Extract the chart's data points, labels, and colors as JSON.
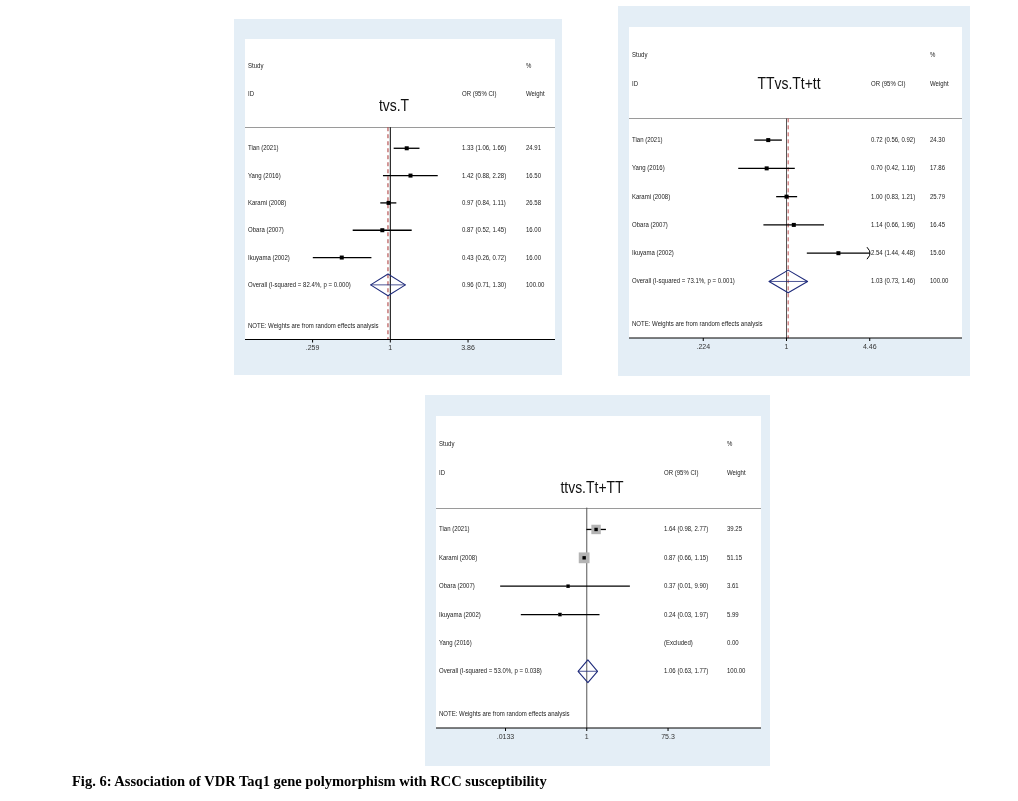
{
  "chart_data": [
    {
      "type": "scatter",
      "title": "tvs.T",
      "orientation": "horizontal",
      "log": "x",
      "categories": [
        "Tian (2021)",
        "Yang (2016)",
        "Karami (2008)",
        "Obara (2007)",
        "Ikuyama (2002)",
        "Overall (I-squared = 82.4%, p = 0.000)"
      ],
      "series": [
        {
          "color": "#000000",
          "marker": "square",
          "values": [
            1.33,
            1.42,
            0.97,
            0.87,
            0.43,
            null
          ],
          "errors": [
            [
              1.06,
              1.66
            ],
            [
              0.88,
              2.28
            ],
            [
              0.84,
              1.11
            ],
            [
              0.52,
              1.45
            ],
            [
              0.26,
              0.72
            ],
            null
          ]
        },
        {
          "color": "#1f2b7b",
          "marker": "diamond",
          "values": [
            null,
            null,
            null,
            null,
            null,
            0.96
          ],
          "errors": [
            null,
            null,
            null,
            null,
            null,
            [
              0.71,
              1.3
            ]
          ]
        }
      ],
      "xlim": [
        0.08,
        17.5
      ],
      "xticks": [
        {
          "value": 0.259,
          "label": ".259"
        },
        1,
        3.86
      ],
      "ref_lines": [
        {
          "axis": "x",
          "value": 1,
          "color": "#000000"
        },
        {
          "axis": "x",
          "value": 0.96,
          "color": "#a83232",
          "line_style": "dashed"
        }
      ],
      "annotations": [
        "Study",
        "ID",
        "OR (95% CI)",
        "%",
        "Weight",
        "1.33 (1.06, 1.66)",
        "24.91",
        "1.42 (0.88, 2.28)",
        "16.50",
        "0.97 (0.84, 1.11)",
        "26.58",
        "0.87 (0.52, 1.45)",
        "16.00",
        "0.43 (0.26, 0.72)",
        "16.00",
        "0.96 (0.71, 1.30)",
        "100.00",
        "NOTE: Weights are from random effects analysis"
      ]
    },
    {
      "type": "scatter",
      "title": "TTvs.Tt+tt",
      "orientation": "horizontal",
      "log": "x",
      "categories": [
        "Tian (2021)",
        "Yang (2016)",
        "Karami (2008)",
        "Obara (2007)",
        "Ikuyama (2002)",
        "Overall (I-squared = 73.1%, p = 0.001)"
      ],
      "series": [
        {
          "color": "#000000",
          "marker": "square",
          "values": [
            0.72,
            0.7,
            1.0,
            1.14,
            2.54,
            null
          ],
          "errors": [
            [
              0.56,
              0.92
            ],
            [
              0.42,
              1.16
            ],
            [
              0.83,
              1.21
            ],
            [
              0.66,
              1.96
            ],
            [
              1.44,
              4.48
            ],
            null
          ]
        },
        {
          "color": "#1f2b7b",
          "marker": "diamond",
          "values": [
            null,
            null,
            null,
            null,
            null,
            1.03
          ],
          "errors": [
            null,
            null,
            null,
            null,
            null,
            [
              0.73,
              1.46
            ]
          ]
        }
      ],
      "xlim": [
        0.059,
        23.4
      ],
      "xticks": [
        {
          "value": 0.224,
          "label": ".224"
        },
        1,
        4.46
      ],
      "ref_lines": [
        {
          "axis": "x",
          "value": 1,
          "color": "#555555"
        },
        {
          "axis": "x",
          "value": 1.03,
          "color": "#c05050",
          "line_style": "dashed"
        }
      ],
      "annotations": [
        "Study",
        "ID",
        "OR (95% CI)",
        "%",
        "Weight",
        "0.72 (0.56, 0.92)",
        "24.30",
        "0.70 (0.42, 1.16)",
        "17.86",
        "1.00 (0.83, 1.21)",
        "25.79",
        "1.14 (0.66, 1.96)",
        "16.45",
        "2.54 (1.44, 4.48)",
        "15.60",
        "1.03 (0.73, 1.46)",
        "100.00",
        "NOTE: Weights are from random effects analysis"
      ]
    },
    {
      "type": "scatter",
      "title": "ttvs.Tt+TT",
      "orientation": "horizontal",
      "log": "x",
      "categories": [
        "Tian (2021)",
        "Karami (2008)",
        "Obara (2007)",
        "Ikuyama (2002)",
        "Yang (2016)",
        "Overall (I-squared = 53.0%, p = 0.038)"
      ],
      "series": [
        {
          "color": "#b4b4b4",
          "marker": "square",
          "values": [
            1.64,
            0.87,
            0.37,
            0.24,
            null,
            null
          ],
          "errors": [
            [
              0.98,
              2.77
            ],
            null,
            [
              0.01,
              9.9
            ],
            [
              0.03,
              1.97
            ],
            null,
            null
          ],
          "sizes": [
            0.767,
            1,
            0.071,
            0.117,
            null,
            null
          ]
        },
        {
          "color": "#1f2b7b",
          "marker": "diamond",
          "values": [
            null,
            null,
            null,
            null,
            null,
            1.06
          ],
          "errors": [
            null,
            null,
            null,
            null,
            null,
            [
              0.63,
              1.77
            ]
          ]
        }
      ],
      "xlim": [
        0.00033,
        10550
      ],
      "xticks": [
        {
          "value": 0.0133,
          "label": ".0133"
        },
        1,
        75.3
      ],
      "ref_lines": [
        {
          "axis": "x",
          "value": 1,
          "color": "#555555"
        }
      ],
      "annotations": [
        "Study",
        "ID",
        "OR (95% CI)",
        "%",
        "Weight",
        "1.64 (0.98, 2.77)",
        "39.25",
        "0.87 (0.66, 1.15)",
        "51.15",
        "0.37 (0.01, 9.90)",
        "3.61",
        "0.24 (0.03, 1.97)",
        "5.99",
        "(Excluded)",
        "0.00",
        "1.06 (0.63, 1.77)",
        "100.00",
        "NOTE: Weights are from random effects analysis",
        "Fig. 6: Association of VDR Taq1 gene polymorphism with RCC susceptibility"
      ]
    }
  ]
}
